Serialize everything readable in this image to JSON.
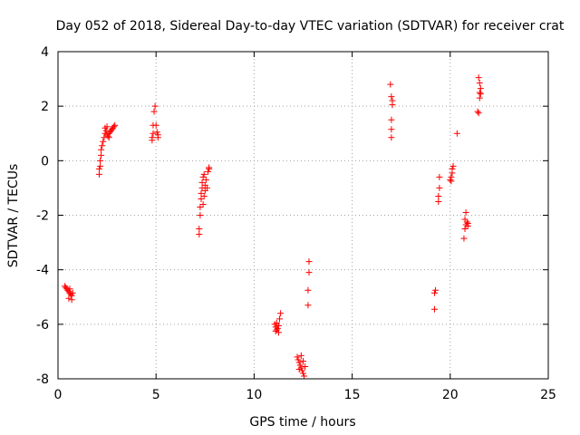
{
  "chart_data": {
    "type": "scatter",
    "title": "Day 052 of 2018, Sidereal Day-to-day VTEC variation (SDTVAR) for receiver crat",
    "xlabel": "GPS time / hours",
    "ylabel": "SDTVAR / TECUs",
    "xlim": [
      0,
      25
    ],
    "ylim": [
      -8,
      4
    ],
    "xticks": [
      0,
      5,
      10,
      15,
      20,
      25
    ],
    "yticks": [
      -8,
      -6,
      -4,
      -2,
      0,
      2,
      4
    ],
    "grid": true,
    "marker": "plus",
    "color": "#ff0000",
    "series": [
      {
        "name": "SDTVAR",
        "points": [
          [
            0.35,
            -4.6
          ],
          [
            0.4,
            -4.65
          ],
          [
            0.45,
            -4.7
          ],
          [
            0.5,
            -4.75
          ],
          [
            0.55,
            -4.8
          ],
          [
            0.6,
            -4.85
          ],
          [
            0.65,
            -4.9
          ],
          [
            0.7,
            -4.95
          ],
          [
            0.55,
            -5.05
          ],
          [
            0.7,
            -5.1
          ],
          [
            0.75,
            -4.85
          ],
          [
            0.6,
            -4.7
          ],
          [
            2.1,
            -0.5
          ],
          [
            2.1,
            -0.3
          ],
          [
            2.15,
            -0.2
          ],
          [
            2.15,
            0.0
          ],
          [
            2.2,
            0.2
          ],
          [
            2.2,
            0.4
          ],
          [
            2.25,
            0.55
          ],
          [
            2.3,
            0.7
          ],
          [
            2.35,
            0.85
          ],
          [
            2.4,
            1.0
          ],
          [
            2.4,
            1.2
          ],
          [
            2.45,
            1.1
          ],
          [
            2.5,
            0.95
          ],
          [
            2.55,
            0.9
          ],
          [
            2.6,
            1.0
          ],
          [
            2.65,
            1.05
          ],
          [
            2.7,
            1.1
          ],
          [
            2.75,
            1.15
          ],
          [
            2.8,
            1.2
          ],
          [
            2.85,
            1.25
          ],
          [
            2.9,
            1.3
          ],
          [
            2.5,
            1.25
          ],
          [
            2.6,
            0.85
          ],
          [
            4.8,
            0.75
          ],
          [
            4.8,
            0.85
          ],
          [
            4.85,
            1.0
          ],
          [
            4.85,
            1.3
          ],
          [
            4.9,
            1.8
          ],
          [
            4.95,
            2.0
          ],
          [
            5.0,
            1.3
          ],
          [
            5.05,
            1.05
          ],
          [
            5.1,
            0.95
          ],
          [
            5.1,
            0.85
          ],
          [
            7.2,
            -2.7
          ],
          [
            7.2,
            -2.5
          ],
          [
            7.25,
            -2.0
          ],
          [
            7.25,
            -1.7
          ],
          [
            7.3,
            -1.4
          ],
          [
            7.3,
            -1.2
          ],
          [
            7.35,
            -1.0
          ],
          [
            7.35,
            -0.8
          ],
          [
            7.4,
            -0.6
          ],
          [
            7.45,
            -1.3
          ],
          [
            7.5,
            -1.1
          ],
          [
            7.5,
            -0.9
          ],
          [
            7.55,
            -0.7
          ],
          [
            7.6,
            -1.0
          ],
          [
            7.4,
            -1.6
          ],
          [
            7.45,
            -0.5
          ],
          [
            7.65,
            -0.4
          ],
          [
            7.7,
            -0.3
          ],
          [
            7.7,
            -0.25
          ],
          [
            11.05,
            -6.0
          ],
          [
            11.1,
            -6.1
          ],
          [
            11.1,
            -6.25
          ],
          [
            11.15,
            -6.2
          ],
          [
            11.2,
            -6.15
          ],
          [
            11.25,
            -6.05
          ],
          [
            11.3,
            -5.8
          ],
          [
            11.35,
            -5.6
          ],
          [
            11.25,
            -6.3
          ],
          [
            11.15,
            -5.95
          ],
          [
            12.2,
            -7.2
          ],
          [
            12.25,
            -7.3
          ],
          [
            12.3,
            -7.4
          ],
          [
            12.35,
            -7.5
          ],
          [
            12.4,
            -7.6
          ],
          [
            12.45,
            -7.7
          ],
          [
            12.5,
            -7.8
          ],
          [
            12.55,
            -7.9
          ],
          [
            12.4,
            -7.15
          ],
          [
            12.6,
            -7.55
          ],
          [
            12.3,
            -7.65
          ],
          [
            12.5,
            -7.35
          ],
          [
            12.75,
            -5.3
          ],
          [
            12.75,
            -4.75
          ],
          [
            12.8,
            -4.1
          ],
          [
            12.8,
            -3.7
          ],
          [
            17.0,
            0.85
          ],
          [
            17.0,
            1.15
          ],
          [
            17.0,
            1.5
          ],
          [
            17.05,
            2.05
          ],
          [
            17.05,
            2.2
          ],
          [
            17.0,
            2.35
          ],
          [
            16.95,
            2.8
          ],
          [
            19.2,
            -5.45
          ],
          [
            19.2,
            -4.85
          ],
          [
            19.25,
            -4.75
          ],
          [
            19.4,
            -1.5
          ],
          [
            19.4,
            -1.3
          ],
          [
            19.45,
            -1.0
          ],
          [
            19.45,
            -0.6
          ],
          [
            20.0,
            -0.7
          ],
          [
            20.05,
            -0.6
          ],
          [
            20.1,
            -0.45
          ],
          [
            20.1,
            -0.3
          ],
          [
            20.15,
            -0.2
          ],
          [
            20.05,
            -0.75
          ],
          [
            20.35,
            1.0
          ],
          [
            20.7,
            -2.85
          ],
          [
            20.75,
            -2.5
          ],
          [
            20.8,
            -2.35
          ],
          [
            20.85,
            -2.25
          ],
          [
            20.9,
            -2.4
          ],
          [
            20.8,
            -1.9
          ],
          [
            20.75,
            -2.15
          ],
          [
            20.9,
            -2.3
          ],
          [
            21.4,
            1.8
          ],
          [
            21.45,
            1.75
          ],
          [
            21.5,
            2.3
          ],
          [
            21.5,
            2.5
          ],
          [
            21.55,
            2.65
          ],
          [
            21.5,
            2.85
          ],
          [
            21.45,
            3.05
          ],
          [
            21.55,
            2.45
          ]
        ]
      }
    ]
  }
}
